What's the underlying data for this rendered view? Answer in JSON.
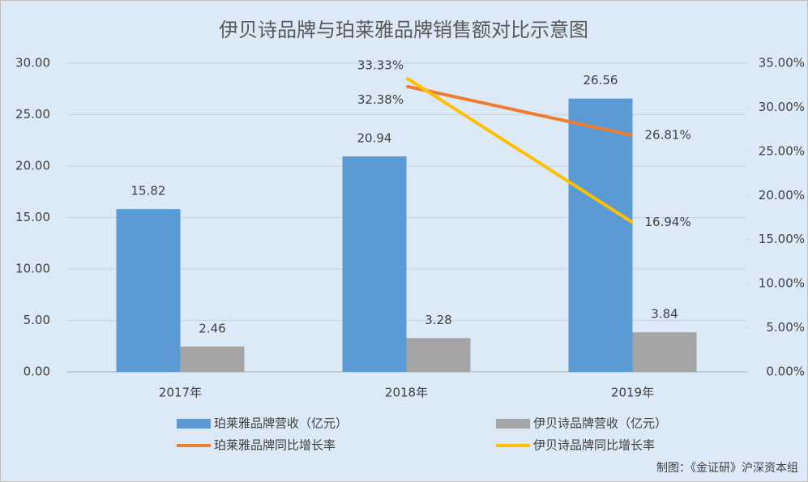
{
  "chart_data": {
    "type": "bar",
    "title": "伊贝诗品牌与珀莱雅品牌销售额对比示意图",
    "source": "制图：《金证研》沪深资本组",
    "categories": [
      "2017年",
      "2018年",
      "2019年"
    ],
    "series": [
      {
        "name": "珀莱雅品牌营收（亿元）",
        "type": "bar",
        "color": "#5b9bd5",
        "values": [
          15.82,
          20.94,
          26.56
        ]
      },
      {
        "name": "伊贝诗品牌营收（亿元）",
        "type": "bar",
        "color": "#a5a5a5",
        "values": [
          2.46,
          3.28,
          3.84
        ]
      },
      {
        "name": "珀莱雅品牌同比增长率",
        "type": "line",
        "axis": "y2",
        "color": "#ed7d31",
        "values": [
          null,
          32.38,
          26.81
        ],
        "value_labels": [
          null,
          "32.38%",
          "26.81%"
        ]
      },
      {
        "name": "伊贝诗品牌同比增长率",
        "type": "line",
        "axis": "y2",
        "color": "#ffc000",
        "values": [
          null,
          33.33,
          16.94
        ],
        "value_labels": [
          null,
          "33.33%",
          "16.94%"
        ]
      }
    ],
    "ylim": [
      0,
      30
    ],
    "yticks": [
      {
        "value": 0,
        "label": "0.00"
      },
      {
        "value": 5,
        "label": "5.00"
      },
      {
        "value": 10,
        "label": "10.00"
      },
      {
        "value": 15,
        "label": "15.00"
      },
      {
        "value": 20,
        "label": "20.00"
      },
      {
        "value": 25,
        "label": "25.00"
      },
      {
        "value": 30,
        "label": "30.00"
      }
    ],
    "y2lim": [
      0,
      35
    ],
    "y2ticks": [
      {
        "value": 0,
        "label": "0.00%"
      },
      {
        "value": 5,
        "label": "5.00%"
      },
      {
        "value": 10,
        "label": "10.00%"
      },
      {
        "value": 15,
        "label": "15.00%"
      },
      {
        "value": 20,
        "label": "20.00%"
      },
      {
        "value": 25,
        "label": "25.00%"
      },
      {
        "value": 30,
        "label": "30.00%"
      },
      {
        "value": 35,
        "label": "35.00%"
      }
    ],
    "grid": true
  }
}
